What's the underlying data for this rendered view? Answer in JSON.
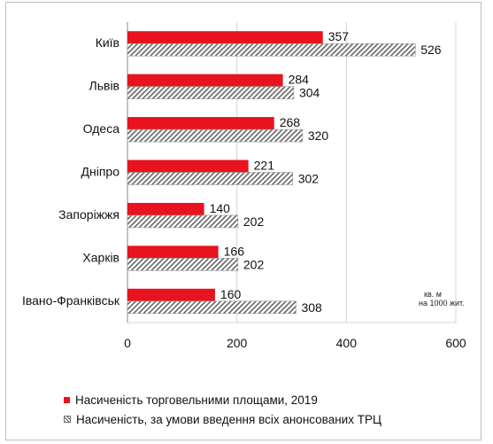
{
  "chart_data": {
    "type": "bar",
    "orientation": "horizontal",
    "categories": [
      "Київ",
      "Львів",
      "Одеса",
      "Дніпро",
      "Запоріжжя",
      "Харків",
      "Івано-Франківськ"
    ],
    "series": [
      {
        "name": "Насиченість торговельними площами,  2019",
        "values": [
          357,
          284,
          268,
          221,
          140,
          166,
          160
        ]
      },
      {
        "name": "Насиченість, за умови введення всіх анонсованих ТРЦ",
        "values": [
          526,
          304,
          320,
          302,
          202,
          202,
          308
        ]
      }
    ],
    "xlim": [
      0,
      600
    ],
    "xticks": [
      0,
      200,
      400,
      600
    ],
    "grid": true,
    "legend_position": "bottom",
    "colors": {
      "series1": "#e8131e",
      "series2": "#bfbfbf"
    }
  },
  "unit_label": {
    "line1": "кв. м",
    "line2": "на  1000 жит."
  }
}
